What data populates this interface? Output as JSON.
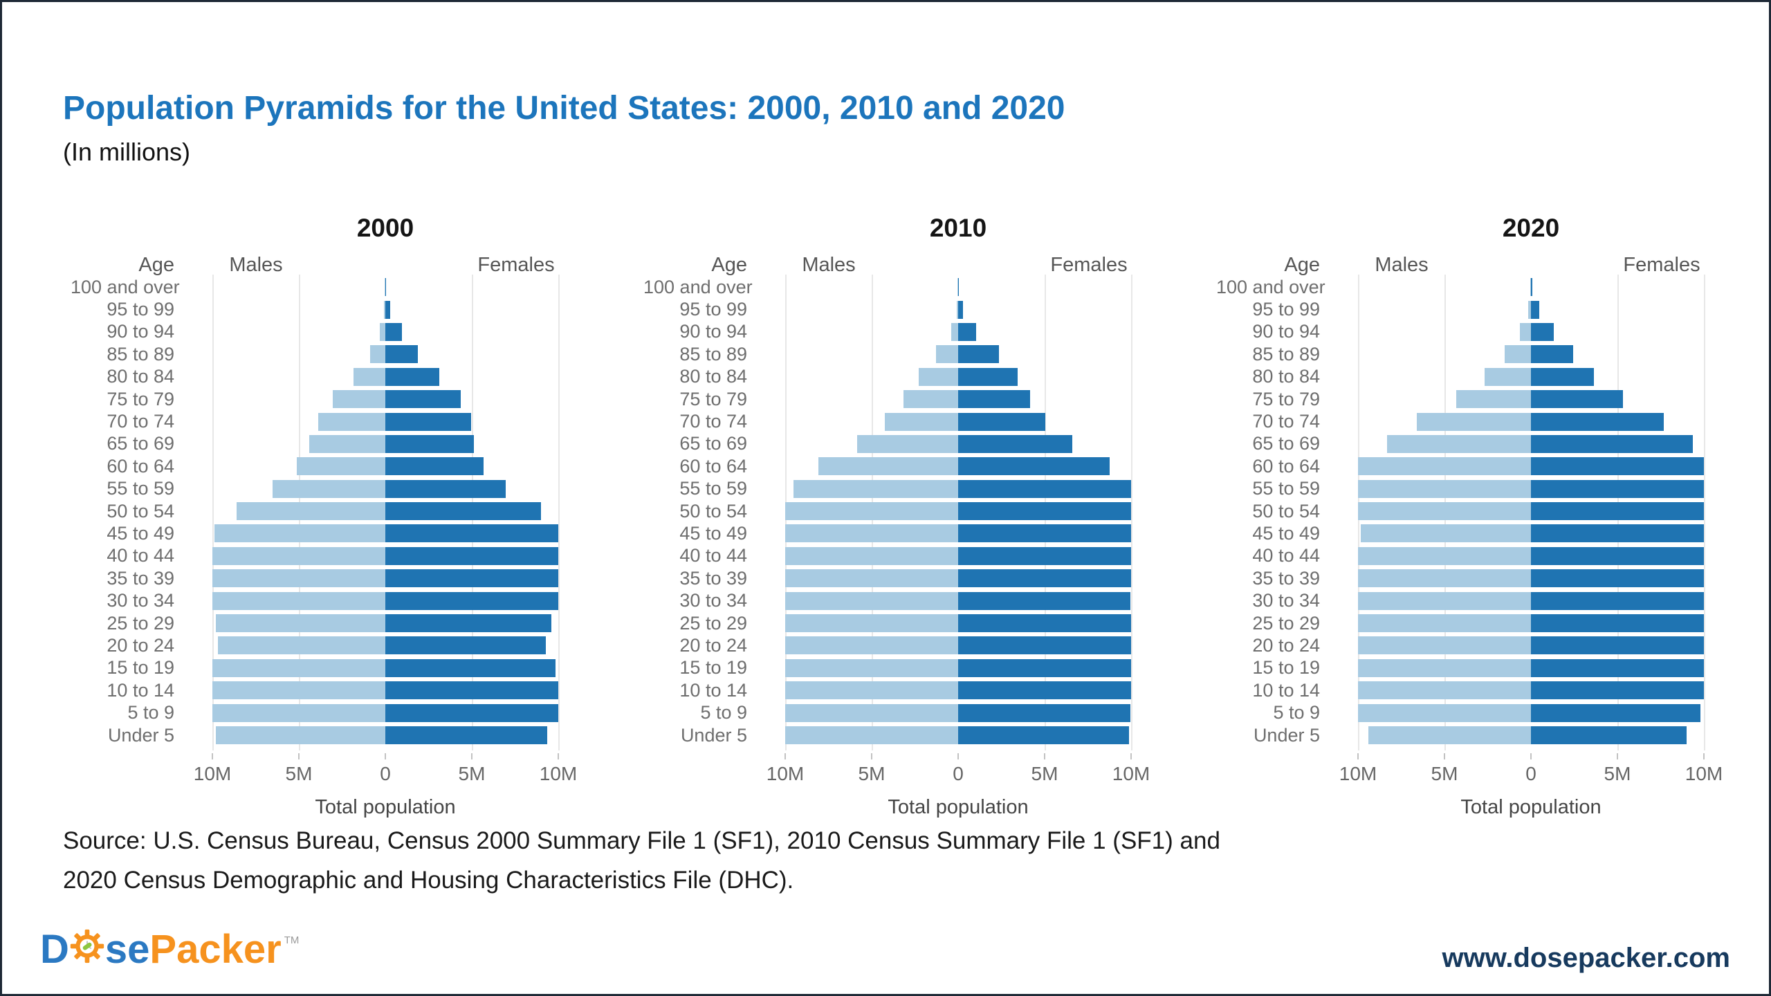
{
  "header": {
    "title": "Population Pyramids for the United States: 2000, 2010 and 2020",
    "subtitle": "(In millions)"
  },
  "chart_data": {
    "type": "bar",
    "subtype": "population-pyramid",
    "unit": "millions of people",
    "axis": {
      "max_millions": 10,
      "tick_interval_millions": 5,
      "x_ticks": [
        "10M",
        "5M",
        "0",
        "5M",
        "10M"
      ]
    },
    "labels": {
      "age_header": "Age",
      "males": "Males",
      "females": "Females",
      "xlabel": "Total population"
    },
    "age_groups_top_to_bottom": [
      "100 and over",
      "95 to 99",
      "90 to 94",
      "85 to 89",
      "80 to 84",
      "75 to 79",
      "70 to 74",
      "65 to 69",
      "60 to 64",
      "55 to 59",
      "50 to 54",
      "45 to 49",
      "40 to 44",
      "35 to 39",
      "30 to 34",
      "25 to 29",
      "20 to 24",
      "15 to 19",
      "10 to 14",
      "5 to 9",
      "Under 5"
    ],
    "pyramids": [
      {
        "year": "2000",
        "males": [
          0.01,
          0.07,
          0.32,
          0.88,
          1.83,
          3.04,
          3.9,
          4.4,
          5.14,
          6.51,
          8.61,
          9.89,
          11.13,
          11.32,
          10.32,
          9.8,
          9.69,
          10.39,
          10.52,
          10.52,
          9.81
        ],
        "females": [
          0.05,
          0.29,
          0.95,
          1.86,
          3.11,
          4.37,
          4.95,
          5.13,
          5.67,
          6.96,
          8.98,
          10.2,
          11.31,
          11.39,
          10.2,
          9.58,
          9.29,
          9.83,
          10.01,
          10.03,
          9.37
        ]
      },
      {
        "year": "2010",
        "males": [
          0.01,
          0.08,
          0.42,
          1.27,
          2.29,
          3.18,
          4.24,
          5.85,
          8.08,
          9.52,
          10.93,
          11.21,
          10.39,
          10.04,
          10.0,
          10.64,
          11.01,
          11.3,
          10.58,
          10.39,
          10.32
        ],
        "females": [
          0.04,
          0.29,
          1.03,
          2.35,
          3.45,
          4.14,
          5.03,
          6.58,
          8.74,
          10.14,
          11.36,
          11.5,
          10.5,
          10.14,
          9.97,
          10.47,
          10.57,
          10.74,
          10.1,
          9.96,
          9.88
        ]
      },
      {
        "year": "2020",
        "males": [
          0.02,
          0.17,
          0.65,
          1.51,
          2.67,
          4.33,
          6.62,
          8.32,
          10.09,
          10.68,
          10.06,
          9.83,
          10.15,
          10.97,
          11.45,
          11.75,
          10.96,
          10.87,
          10.97,
          10.2,
          9.4
        ],
        "females": [
          0.08,
          0.47,
          1.33,
          2.44,
          3.65,
          5.32,
          7.67,
          9.34,
          10.92,
          11.22,
          10.39,
          10.02,
          10.24,
          10.95,
          11.22,
          11.36,
          10.54,
          10.43,
          10.49,
          9.79,
          8.98
        ]
      }
    ],
    "colors": {
      "male_bar": "#a8cbe2",
      "female_bar": "#1f74b2",
      "title_blue": "#1c75bc",
      "gridline": "#e7e7e7"
    },
    "legend_position": "column headers (Males left, Females right)"
  },
  "footer": {
    "source_line1": "Source: U.S. Census Bureau, Census 2000 Summary File 1 (SF1), 2010 Census Summary File 1 (SF1) and",
    "source_line2": "2020 Census Demographic and Housing Characteristics File (DHC).",
    "logo": {
      "part1": "D",
      "part2": "se",
      "part3": "Packer",
      "tm": "TM"
    },
    "website": "www.dosepacker.com"
  }
}
